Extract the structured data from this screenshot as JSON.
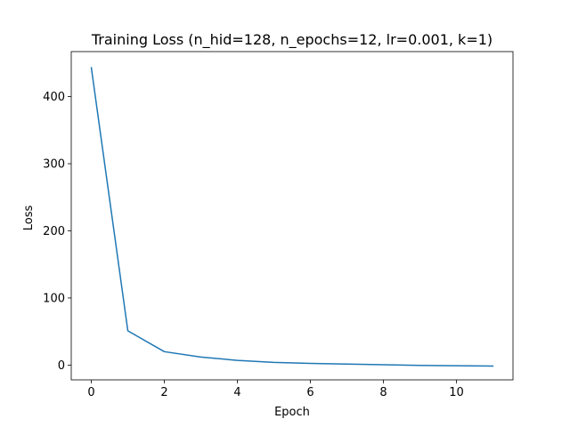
{
  "chart_data": {
    "type": "line",
    "title": "Training Loss (n_hid=128, n_epochs=12, lr=0.001, k=1)",
    "xlabel": "Epoch",
    "ylabel": "Loss",
    "xlim": [
      -0.55,
      11.55
    ],
    "ylim": [
      -22,
      467
    ],
    "xticks": [
      0,
      2,
      4,
      6,
      8,
      10
    ],
    "yticks": [
      0,
      100,
      200,
      300,
      400
    ],
    "grid": false,
    "legend": "none",
    "series": [
      {
        "color": "#1f77b4",
        "x": [
          0,
          1,
          2,
          3,
          4,
          5,
          6,
          7,
          8,
          9,
          10,
          11
        ],
        "y": [
          443,
          51,
          20,
          12,
          7,
          4,
          2.5,
          1.5,
          0.5,
          -0.5,
          -1,
          -1.5
        ]
      }
    ]
  }
}
